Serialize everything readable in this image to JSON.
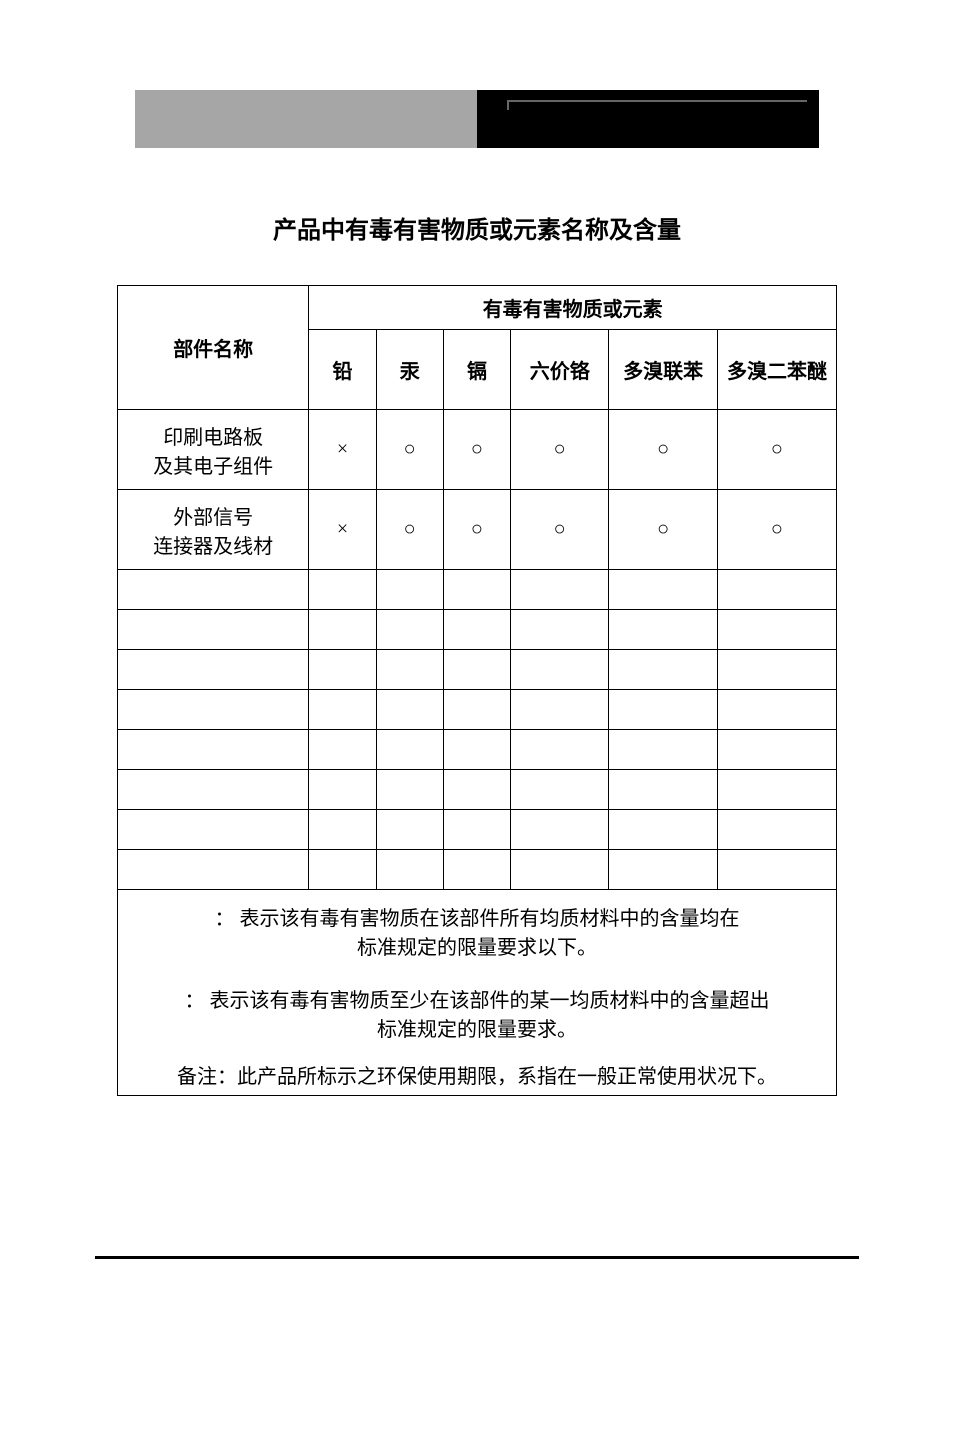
{
  "title": "产品中有毒有害物质或元素名称及含量",
  "table": {
    "super_header": "有毒有害物质或元素",
    "part_col_header": "部件名称",
    "columns": [
      "铅",
      "汞",
      "镉",
      "六价铬",
      "多溴联苯",
      "多溴二苯醚"
    ],
    "rows": [
      {
        "part_l1": "印刷电路板",
        "part_l2": "及其电子组件",
        "cells": [
          "×",
          "○",
          "○",
          "○",
          "○",
          "○"
        ]
      },
      {
        "part_l1": "外部信号",
        "part_l2": "连接器及线材",
        "cells": [
          "×",
          "○",
          "○",
          "○",
          "○",
          "○"
        ]
      }
    ],
    "blank_row_count": 8
  },
  "notes": {
    "n1_prefix": "：",
    "n1_l1": "表示该有毒有害物质在该部件所有均质材料中的含量均在",
    "n1_l2": "标准规定的限量要求以下。",
    "n2_prefix": "：",
    "n2_l1": "表示该有毒有害物质至少在该部件的某一均质材料中的含量超出",
    "n2_l2": "标准规定的限量要求。",
    "remark": "备注：此产品所标示之环保使用期限，系指在一般正常使用状况下。"
  },
  "style": {
    "page_bg": "#ffffff",
    "header_left_bg": "#a6a6a6",
    "header_right_bg": "#000000",
    "border_color": "#000000",
    "title_fontsize": 24,
    "cell_fontsize": 20
  }
}
